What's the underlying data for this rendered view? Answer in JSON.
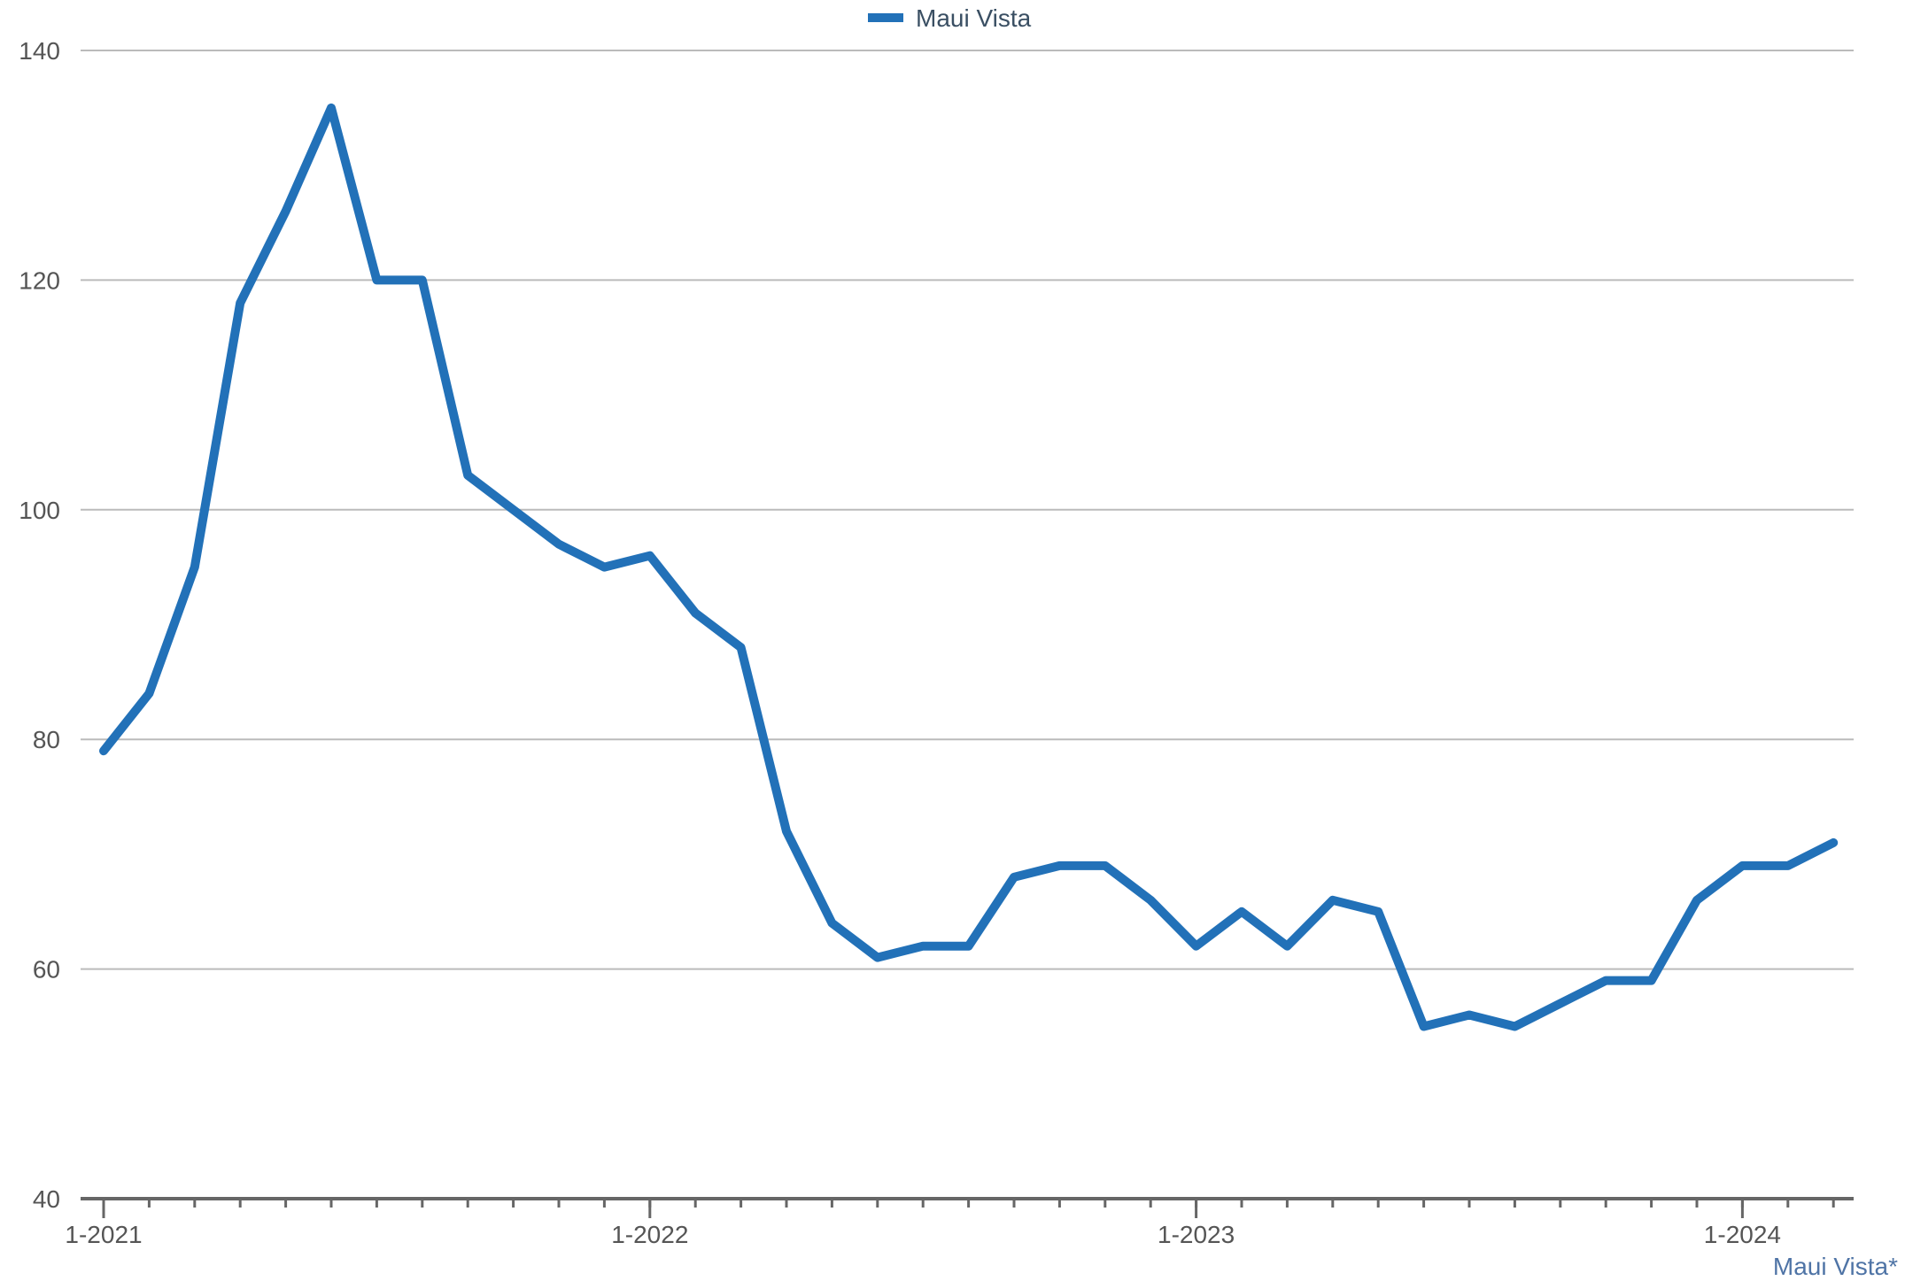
{
  "chart_data": {
    "type": "line",
    "title": "",
    "xlabel": "",
    "ylabel": "",
    "ylim": [
      40,
      140
    ],
    "y_ticks": [
      40,
      60,
      80,
      100,
      120,
      140
    ],
    "x_tick_labels": [
      "1-2021",
      "1-2022",
      "1-2023",
      "1-2024"
    ],
    "grid": true,
    "legend_position": "top-center",
    "source_label": "Maui Vista*",
    "colors": {
      "series": "#2271b8",
      "grid": "#bbbbbb",
      "axis": "#666666",
      "tick_text": "#555555",
      "legend_text": "#3a4f63",
      "source_text": "#4f74a6"
    },
    "x": [
      "1-2021",
      "2-2021",
      "3-2021",
      "4-2021",
      "5-2021",
      "6-2021",
      "7-2021",
      "8-2021",
      "9-2021",
      "10-2021",
      "11-2021",
      "12-2021",
      "1-2022",
      "2-2022",
      "3-2022",
      "4-2022",
      "5-2022",
      "6-2022",
      "7-2022",
      "8-2022",
      "9-2022",
      "10-2022",
      "11-2022",
      "12-2022",
      "1-2023",
      "2-2023",
      "3-2023",
      "4-2023",
      "5-2023",
      "6-2023",
      "7-2023",
      "8-2023",
      "9-2023",
      "10-2023",
      "11-2023",
      "12-2023",
      "1-2024",
      "2-2024",
      "3-2024"
    ],
    "series": [
      {
        "name": "Maui Vista",
        "values": [
          79,
          84,
          95,
          118,
          126,
          135,
          120,
          120,
          103,
          100,
          97,
          95,
          96,
          91,
          88,
          72,
          64,
          61,
          62,
          62,
          68,
          69,
          69,
          66,
          62,
          65,
          62,
          66,
          65,
          55,
          56,
          55,
          57,
          59,
          59,
          66,
          69,
          69,
          71
        ]
      }
    ]
  }
}
